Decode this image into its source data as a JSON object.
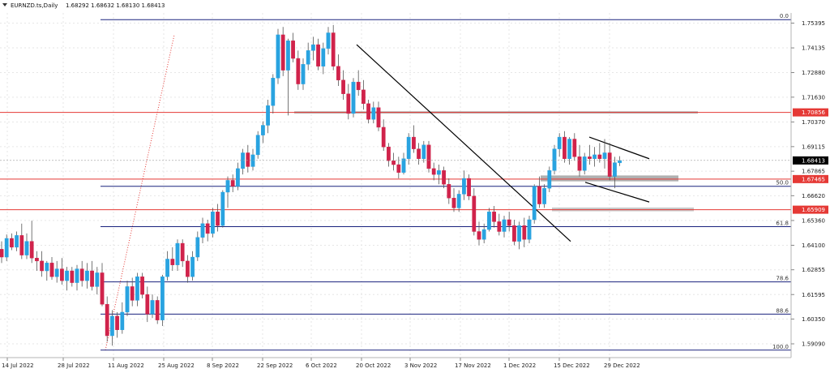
{
  "header": {
    "symbol": "EURNZD.ts,Daily",
    "ohlc": "1.68292 1.68632 1.68130 1.68413"
  },
  "chart_data": {
    "type": "candlestick",
    "ylim": [
      1.5839,
      1.7591
    ],
    "price_ticks": [
      "1.75395",
      "1.74135",
      "1.72880",
      "1.71630",
      "1.70370",
      "1.69115",
      "1.67865",
      "1.66620",
      "1.65360",
      "1.64100",
      "1.62855",
      "1.61595",
      "1.60350",
      "1.59090"
    ],
    "date_labels": [
      "14 Jul 2022",
      "28 Jul 2022",
      "11 Aug 2022",
      "25 Aug 2022",
      "8 Sep 2022",
      "22 Sep 2022",
      "6 Oct 2022",
      "20 Oct 2022",
      "3 Nov 2022",
      "17 Nov 2022",
      "1 Dec 2022",
      "15 Dec 2022",
      "29 Dec 2022"
    ],
    "current_price": "1.68413",
    "key_levels": [
      {
        "label": "1.70856",
        "value": 1.70856,
        "color": "#e53935"
      },
      {
        "label": "1.67465",
        "value": 1.67465,
        "color": "#e53935"
      },
      {
        "label": "1.65909",
        "value": 1.65909,
        "color": "#e53935"
      }
    ],
    "fib_levels": [
      {
        "label": "0.0",
        "value": 1.75572
      },
      {
        "label": "50.0",
        "value": 1.671
      },
      {
        "label": "61.8",
        "value": 1.6505
      },
      {
        "label": "78.6",
        "value": 1.6224
      },
      {
        "label": "88.6",
        "value": 1.606
      },
      {
        "label": "100.0",
        "value": 1.5877
      }
    ],
    "colors": {
      "bull": "#29a3e0",
      "bear": "#d0234b",
      "fib": "#1a237e",
      "level": "#e53935",
      "zone": "#b0b0b0",
      "trend": "#000000",
      "grid": "#e6e6e6"
    },
    "candles": [
      {
        "o": 1.639,
        "h": 1.643,
        "l": 1.632,
        "c": 1.635
      },
      {
        "o": 1.635,
        "h": 1.6465,
        "l": 1.633,
        "c": 1.6445
      },
      {
        "o": 1.6445,
        "h": 1.647,
        "l": 1.6385,
        "c": 1.64
      },
      {
        "o": 1.64,
        "h": 1.648,
        "l": 1.638,
        "c": 1.646
      },
      {
        "o": 1.646,
        "h": 1.652,
        "l": 1.634,
        "c": 1.636
      },
      {
        "o": 1.636,
        "h": 1.647,
        "l": 1.634,
        "c": 1.643
      },
      {
        "o": 1.643,
        "h": 1.6535,
        "l": 1.632,
        "c": 1.6345
      },
      {
        "o": 1.6345,
        "h": 1.638,
        "l": 1.628,
        "c": 1.633
      },
      {
        "o": 1.633,
        "h": 1.638,
        "l": 1.625,
        "c": 1.628
      },
      {
        "o": 1.628,
        "h": 1.633,
        "l": 1.623,
        "c": 1.632
      },
      {
        "o": 1.632,
        "h": 1.635,
        "l": 1.6235,
        "c": 1.625
      },
      {
        "o": 1.625,
        "h": 1.633,
        "l": 1.622,
        "c": 1.629
      },
      {
        "o": 1.629,
        "h": 1.6345,
        "l": 1.621,
        "c": 1.623
      },
      {
        "o": 1.623,
        "h": 1.63,
        "l": 1.618,
        "c": 1.628
      },
      {
        "o": 1.628,
        "h": 1.63,
        "l": 1.62,
        "c": 1.622
      },
      {
        "o": 1.622,
        "h": 1.631,
        "l": 1.618,
        "c": 1.629
      },
      {
        "o": 1.629,
        "h": 1.633,
        "l": 1.62,
        "c": 1.623
      },
      {
        "o": 1.623,
        "h": 1.632,
        "l": 1.619,
        "c": 1.628
      },
      {
        "o": 1.628,
        "h": 1.633,
        "l": 1.618,
        "c": 1.62
      },
      {
        "o": 1.62,
        "h": 1.63,
        "l": 1.616,
        "c": 1.627
      },
      {
        "o": 1.627,
        "h": 1.632,
        "l": 1.61,
        "c": 1.611
      },
      {
        "o": 1.611,
        "h": 1.615,
        "l": 1.592,
        "c": 1.595
      },
      {
        "o": 1.595,
        "h": 1.608,
        "l": 1.59,
        "c": 1.605
      },
      {
        "o": 1.605,
        "h": 1.607,
        "l": 1.594,
        "c": 1.598
      },
      {
        "o": 1.598,
        "h": 1.612,
        "l": 1.596,
        "c": 1.607
      },
      {
        "o": 1.607,
        "h": 1.623,
        "l": 1.605,
        "c": 1.62
      },
      {
        "o": 1.62,
        "h": 1.6245,
        "l": 1.61,
        "c": 1.613
      },
      {
        "o": 1.613,
        "h": 1.627,
        "l": 1.61,
        "c": 1.625
      },
      {
        "o": 1.625,
        "h": 1.627,
        "l": 1.614,
        "c": 1.616
      },
      {
        "o": 1.616,
        "h": 1.62,
        "l": 1.602,
        "c": 1.606
      },
      {
        "o": 1.606,
        "h": 1.616,
        "l": 1.604,
        "c": 1.613
      },
      {
        "o": 1.613,
        "h": 1.615,
        "l": 1.601,
        "c": 1.603
      },
      {
        "o": 1.603,
        "h": 1.626,
        "l": 1.6,
        "c": 1.625
      },
      {
        "o": 1.625,
        "h": 1.638,
        "l": 1.623,
        "c": 1.634
      },
      {
        "o": 1.634,
        "h": 1.64,
        "l": 1.628,
        "c": 1.631
      },
      {
        "o": 1.631,
        "h": 1.644,
        "l": 1.628,
        "c": 1.642
      },
      {
        "o": 1.642,
        "h": 1.644,
        "l": 1.63,
        "c": 1.633
      },
      {
        "o": 1.633,
        "h": 1.636,
        "l": 1.622,
        "c": 1.625
      },
      {
        "o": 1.625,
        "h": 1.638,
        "l": 1.623,
        "c": 1.635
      },
      {
        "o": 1.635,
        "h": 1.648,
        "l": 1.633,
        "c": 1.645
      },
      {
        "o": 1.645,
        "h": 1.655,
        "l": 1.642,
        "c": 1.652
      },
      {
        "o": 1.652,
        "h": 1.654,
        "l": 1.643,
        "c": 1.647
      },
      {
        "o": 1.647,
        "h": 1.66,
        "l": 1.645,
        "c": 1.658
      },
      {
        "o": 1.658,
        "h": 1.662,
        "l": 1.648,
        "c": 1.651
      },
      {
        "o": 1.651,
        "h": 1.669,
        "l": 1.65,
        "c": 1.668
      },
      {
        "o": 1.668,
        "h": 1.676,
        "l": 1.66,
        "c": 1.674
      },
      {
        "o": 1.674,
        "h": 1.677,
        "l": 1.668,
        "c": 1.671
      },
      {
        "o": 1.671,
        "h": 1.683,
        "l": 1.669,
        "c": 1.68
      },
      {
        "o": 1.68,
        "h": 1.69,
        "l": 1.677,
        "c": 1.688
      },
      {
        "o": 1.688,
        "h": 1.692,
        "l": 1.678,
        "c": 1.681
      },
      {
        "o": 1.681,
        "h": 1.69,
        "l": 1.679,
        "c": 1.687
      },
      {
        "o": 1.687,
        "h": 1.699,
        "l": 1.685,
        "c": 1.697
      },
      {
        "o": 1.697,
        "h": 1.704,
        "l": 1.693,
        "c": 1.702
      },
      {
        "o": 1.702,
        "h": 1.715,
        "l": 1.698,
        "c": 1.712
      },
      {
        "o": 1.712,
        "h": 1.728,
        "l": 1.708,
        "c": 1.726
      },
      {
        "o": 1.726,
        "h": 1.751,
        "l": 1.723,
        "c": 1.748
      },
      {
        "o": 1.748,
        "h": 1.752,
        "l": 1.727,
        "c": 1.73
      },
      {
        "o": 1.73,
        "h": 1.746,
        "l": 1.707,
        "c": 1.745
      },
      {
        "o": 1.745,
        "h": 1.749,
        "l": 1.734,
        "c": 1.736
      },
      {
        "o": 1.736,
        "h": 1.74,
        "l": 1.72,
        "c": 1.723
      },
      {
        "o": 1.723,
        "h": 1.736,
        "l": 1.72,
        "c": 1.733
      },
      {
        "o": 1.733,
        "h": 1.744,
        "l": 1.73,
        "c": 1.74
      },
      {
        "o": 1.74,
        "h": 1.747,
        "l": 1.735,
        "c": 1.743
      },
      {
        "o": 1.743,
        "h": 1.746,
        "l": 1.73,
        "c": 1.732
      },
      {
        "o": 1.732,
        "h": 1.744,
        "l": 1.728,
        "c": 1.741
      },
      {
        "o": 1.741,
        "h": 1.752,
        "l": 1.738,
        "c": 1.749
      },
      {
        "o": 1.749,
        "h": 1.753,
        "l": 1.73,
        "c": 1.732
      },
      {
        "o": 1.732,
        "h": 1.738,
        "l": 1.722,
        "c": 1.725
      },
      {
        "o": 1.725,
        "h": 1.73,
        "l": 1.715,
        "c": 1.718
      },
      {
        "o": 1.718,
        "h": 1.723,
        "l": 1.705,
        "c": 1.708
      },
      {
        "o": 1.708,
        "h": 1.726,
        "l": 1.706,
        "c": 1.724
      },
      {
        "o": 1.724,
        "h": 1.73,
        "l": 1.717,
        "c": 1.72
      },
      {
        "o": 1.72,
        "h": 1.725,
        "l": 1.71,
        "c": 1.713
      },
      {
        "o": 1.713,
        "h": 1.715,
        "l": 1.703,
        "c": 1.705
      },
      {
        "o": 1.705,
        "h": 1.714,
        "l": 1.703,
        "c": 1.711
      },
      {
        "o": 1.711,
        "h": 1.714,
        "l": 1.699,
        "c": 1.701
      },
      {
        "o": 1.701,
        "h": 1.705,
        "l": 1.689,
        "c": 1.691
      },
      {
        "o": 1.691,
        "h": 1.693,
        "l": 1.681,
        "c": 1.684
      },
      {
        "o": 1.684,
        "h": 1.688,
        "l": 1.679,
        "c": 1.682
      },
      {
        "o": 1.682,
        "h": 1.686,
        "l": 1.675,
        "c": 1.678
      },
      {
        "o": 1.678,
        "h": 1.688,
        "l": 1.677,
        "c": 1.685
      },
      {
        "o": 1.685,
        "h": 1.698,
        "l": 1.682,
        "c": 1.696
      },
      {
        "o": 1.696,
        "h": 1.702,
        "l": 1.688,
        "c": 1.69
      },
      {
        "o": 1.69,
        "h": 1.693,
        "l": 1.682,
        "c": 1.685
      },
      {
        "o": 1.685,
        "h": 1.694,
        "l": 1.683,
        "c": 1.692
      },
      {
        "o": 1.692,
        "h": 1.694,
        "l": 1.678,
        "c": 1.68
      },
      {
        "o": 1.68,
        "h": 1.683,
        "l": 1.674,
        "c": 1.677
      },
      {
        "o": 1.677,
        "h": 1.682,
        "l": 1.672,
        "c": 1.679
      },
      {
        "o": 1.679,
        "h": 1.681,
        "l": 1.67,
        "c": 1.672
      },
      {
        "o": 1.672,
        "h": 1.675,
        "l": 1.662,
        "c": 1.665
      },
      {
        "o": 1.665,
        "h": 1.67,
        "l": 1.658,
        "c": 1.66
      },
      {
        "o": 1.66,
        "h": 1.669,
        "l": 1.658,
        "c": 1.667
      },
      {
        "o": 1.667,
        "h": 1.679,
        "l": 1.664,
        "c": 1.675
      },
      {
        "o": 1.675,
        "h": 1.677,
        "l": 1.664,
        "c": 1.666
      },
      {
        "o": 1.666,
        "h": 1.67,
        "l": 1.646,
        "c": 1.648
      },
      {
        "o": 1.648,
        "h": 1.653,
        "l": 1.641,
        "c": 1.644
      },
      {
        "o": 1.644,
        "h": 1.652,
        "l": 1.642,
        "c": 1.649
      },
      {
        "o": 1.649,
        "h": 1.66,
        "l": 1.648,
        "c": 1.658
      },
      {
        "o": 1.658,
        "h": 1.661,
        "l": 1.65,
        "c": 1.653
      },
      {
        "o": 1.653,
        "h": 1.657,
        "l": 1.646,
        "c": 1.648
      },
      {
        "o": 1.648,
        "h": 1.656,
        "l": 1.645,
        "c": 1.654
      },
      {
        "o": 1.654,
        "h": 1.658,
        "l": 1.648,
        "c": 1.651
      },
      {
        "o": 1.651,
        "h": 1.654,
        "l": 1.641,
        "c": 1.643
      },
      {
        "o": 1.643,
        "h": 1.653,
        "l": 1.639,
        "c": 1.651
      },
      {
        "o": 1.651,
        "h": 1.655,
        "l": 1.64,
        "c": 1.644
      },
      {
        "o": 1.644,
        "h": 1.656,
        "l": 1.642,
        "c": 1.654
      },
      {
        "o": 1.654,
        "h": 1.672,
        "l": 1.652,
        "c": 1.671
      },
      {
        "o": 1.671,
        "h": 1.676,
        "l": 1.66,
        "c": 1.662
      },
      {
        "o": 1.662,
        "h": 1.672,
        "l": 1.66,
        "c": 1.67
      },
      {
        "o": 1.67,
        "h": 1.681,
        "l": 1.668,
        "c": 1.679
      },
      {
        "o": 1.679,
        "h": 1.692,
        "l": 1.677,
        "c": 1.69
      },
      {
        "o": 1.69,
        "h": 1.698,
        "l": 1.686,
        "c": 1.696
      },
      {
        "o": 1.696,
        "h": 1.699,
        "l": 1.683,
        "c": 1.685
      },
      {
        "o": 1.685,
        "h": 1.696,
        "l": 1.682,
        "c": 1.695
      },
      {
        "o": 1.695,
        "h": 1.698,
        "l": 1.684,
        "c": 1.686
      },
      {
        "o": 1.686,
        "h": 1.692,
        "l": 1.676,
        "c": 1.679
      },
      {
        "o": 1.679,
        "h": 1.688,
        "l": 1.677,
        "c": 1.686
      },
      {
        "o": 1.686,
        "h": 1.692,
        "l": 1.682,
        "c": 1.685
      },
      {
        "o": 1.685,
        "h": 1.691,
        "l": 1.681,
        "c": 1.687
      },
      {
        "o": 1.687,
        "h": 1.693,
        "l": 1.683,
        "c": 1.685
      },
      {
        "o": 1.685,
        "h": 1.695,
        "l": 1.68,
        "c": 1.688
      },
      {
        "o": 1.688,
        "h": 1.693,
        "l": 1.674,
        "c": 1.676
      },
      {
        "o": 1.676,
        "h": 1.686,
        "l": 1.67,
        "c": 1.683
      },
      {
        "o": 1.6829,
        "h": 1.6863,
        "l": 1.6813,
        "c": 1.6841
      }
    ]
  }
}
